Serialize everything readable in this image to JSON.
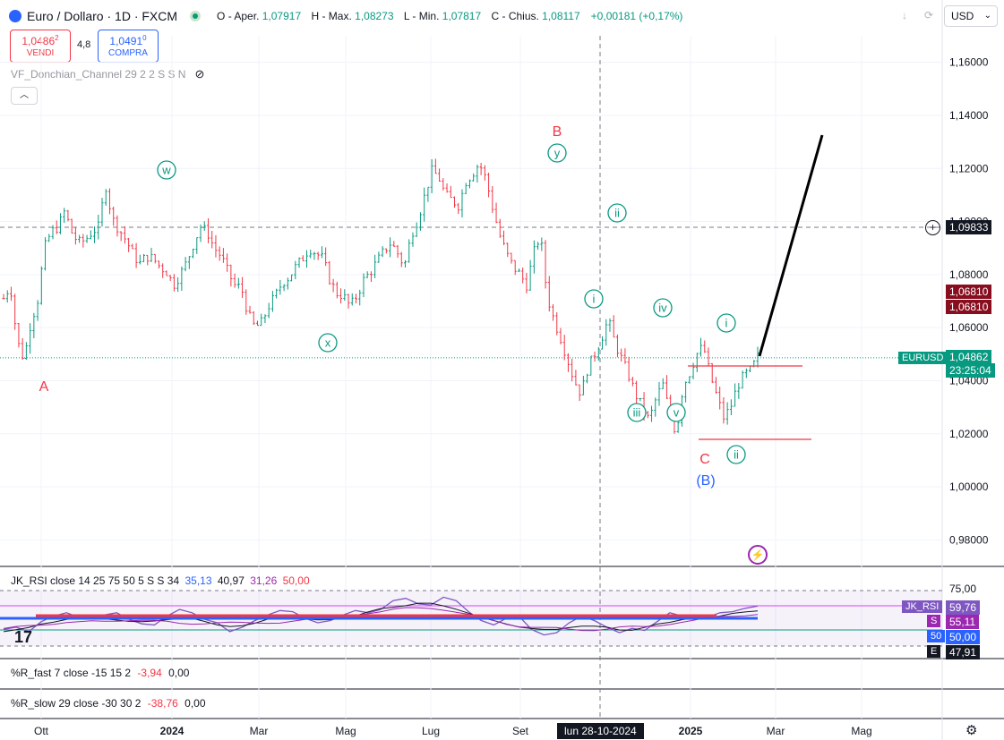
{
  "header": {
    "symbol": "Euro / Dollaro · 1D · FXCM",
    "ohlc": [
      {
        "k": "O - Aper.",
        "v": "1,07917"
      },
      {
        "k": "H - Max.",
        "v": "1,08273"
      },
      {
        "k": "L - Min.",
        "v": "1,07817"
      },
      {
        "k": "C - Chius.",
        "v": "1,08117"
      }
    ],
    "change": "+0,00181 (+0,17%)",
    "currency": "USD",
    "sell_price": "1,0486",
    "sell_price_sup": "2",
    "sell_label": "VENDI",
    "spread": "4,8",
    "buy_price": "1,0491",
    "buy_price_sup": "0",
    "buy_label": "COMPRA",
    "indicator_name": "VF_Donchian_Channel 29 2 2 S S N"
  },
  "colors": {
    "up": "#089981",
    "down": "#f23645",
    "wave": "#089981",
    "corr": "#f23645",
    "blue": "#2962ff",
    "rsi": "#7e57c2"
  },
  "chart_data": {
    "type": "candlestick",
    "price_axis": {
      "ticks": [
        "1,16000",
        "1,14000",
        "1,12000",
        "1,10000",
        "1,08000",
        "1,06000",
        "1,04000",
        "1,02000",
        "1,00000",
        "0,98000"
      ],
      "ylim": [
        0.97,
        1.17
      ]
    },
    "time_axis": {
      "ticks": [
        "Ott",
        "2024",
        "Mar",
        "Mag",
        "Lug",
        "Set",
        "2025",
        "Mar",
        "Mag"
      ],
      "crosshair_label": "lun 28-10-2024"
    },
    "series": [
      {
        "name": "EURUSD",
        "values": [
          [
            1.071,
            1.076
          ],
          [
            1.055,
            1.048
          ],
          [
            1.062,
            1.07
          ],
          [
            1.09,
            1.096
          ],
          [
            1.098,
            1.104
          ],
          [
            1.096,
            1.092
          ],
          [
            1.093,
            1.096
          ],
          [
            1.098,
            1.114
          ],
          [
            1.101,
            1.097
          ],
          [
            1.093,
            1.088
          ],
          [
            1.084,
            1.087
          ],
          [
            1.086,
            1.083
          ],
          [
            1.081,
            1.076
          ],
          [
            1.08,
            1.085
          ],
          [
            1.092,
            1.098
          ],
          [
            1.096,
            1.09
          ],
          [
            1.087,
            1.081
          ],
          [
            1.076,
            1.075
          ],
          [
            1.065,
            1.06
          ],
          [
            1.062,
            1.068
          ],
          [
            1.072,
            1.077
          ],
          [
            1.079,
            1.083
          ],
          [
            1.086,
            1.09
          ],
          [
            1.088,
            1.086
          ],
          [
            1.078,
            1.073
          ],
          [
            1.072,
            1.068
          ],
          [
            1.072,
            1.078
          ],
          [
            1.081,
            1.085
          ],
          [
            1.089,
            1.092
          ],
          [
            1.088,
            1.083
          ],
          [
            1.095,
            1.101
          ],
          [
            1.11,
            1.119
          ],
          [
            1.117,
            1.11
          ],
          [
            1.108,
            1.106
          ],
          [
            1.115,
            1.118
          ],
          [
            1.122,
            1.116
          ],
          [
            1.105,
            1.095
          ],
          [
            1.088,
            1.083
          ],
          [
            1.08,
            1.076
          ],
          [
            1.088,
            1.095
          ],
          [
            1.072,
            1.063
          ],
          [
            1.056,
            1.048
          ],
          [
            1.04,
            1.035
          ],
          [
            1.045,
            1.05
          ],
          [
            1.056,
            1.063
          ],
          [
            1.054,
            1.048
          ],
          [
            1.042,
            1.035
          ],
          [
            1.03,
            1.025
          ],
          [
            1.033,
            1.039
          ],
          [
            1.028,
            1.02
          ],
          [
            1.038,
            1.043
          ],
          [
            1.05,
            1.053
          ],
          [
            1.042,
            1.034
          ],
          [
            1.026,
            1.03
          ],
          [
            1.038,
            1.042
          ],
          [
            1.044,
            1.049
          ]
        ]
      },
      {
        "name": "JK_RSI",
        "values": [
          40,
          42,
          38,
          47,
          52,
          55,
          51,
          50,
          53,
          55,
          49,
          45,
          44,
          52,
          58,
          55,
          49,
          46,
          38,
          42,
          48,
          53,
          57,
          56,
          50,
          46,
          48,
          53,
          57,
          55,
          58,
          66,
          68,
          63,
          62,
          69,
          66,
          56,
          48,
          44,
          50,
          52,
          40,
          35,
          37,
          46,
          52,
          48,
          42,
          37,
          41,
          39,
          47,
          55,
          52,
          49,
          51,
          55,
          56,
          59,
          61
        ]
      }
    ],
    "current_price_tag": "1,04862",
    "current_price_series": "EURUSD",
    "countdown": "23:25:04",
    "crosshair_price": "1,09833",
    "high_price_tags": [
      "1,06810",
      "1,06810"
    ],
    "wave_labels": [
      "A",
      "B",
      "C",
      "(B)",
      "w",
      "x",
      "y",
      "i",
      "ii",
      "iii",
      "iv",
      "v",
      "i",
      "ii"
    ]
  },
  "rsi_pane": {
    "label": "JK_RSI close 14 25 75 50 5 S S 34",
    "values_text": [
      {
        "t": "35,13",
        "c": "#2962ff"
      },
      {
        "t": "40,97",
        "c": "#131722"
      },
      {
        "t": "31,26",
        "c": "#9c27b0"
      },
      {
        "t": "50,00",
        "c": "#f23645"
      }
    ],
    "axis_top": "75,00",
    "tags": [
      {
        "t": "JK_RSI",
        "v": "59,76",
        "bg": "#7e57c2"
      },
      {
        "t": "S",
        "v": "55,11",
        "bg": "#9c27b0"
      },
      {
        "t": "50",
        "v": "50,00",
        "bg": "#2962ff"
      },
      {
        "t": "E",
        "v": "47,91",
        "bg": "#131722"
      }
    ]
  },
  "r_fast": {
    "label": "%R_fast 7 close -15 15 2",
    "v1": "-3,94",
    "v2": "0,00"
  },
  "r_slow": {
    "label": "%R_slow 29 close -30 30 2",
    "v1": "-38,76",
    "v2": "0,00"
  },
  "tv_logo": "17"
}
